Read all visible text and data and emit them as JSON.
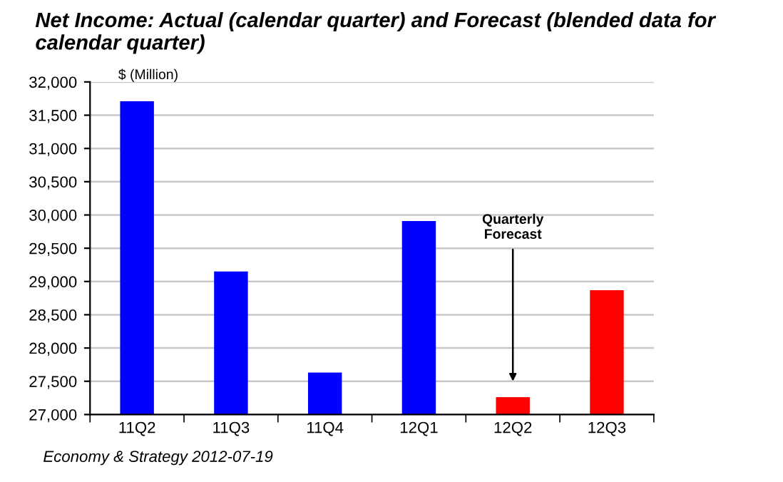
{
  "chart_data": {
    "type": "bar",
    "title": "Net Income: Actual (calendar quarter) and Forecast (blended data for calendar quarter)",
    "ylabel": "$ (Million)",
    "categories": [
      "11Q2",
      "11Q3",
      "11Q4",
      "12Q1",
      "12Q2",
      "12Q3"
    ],
    "values": [
      31710,
      29150,
      27630,
      29910,
      27260,
      28870
    ],
    "colors": [
      "#0000ff",
      "#0000ff",
      "#0000ff",
      "#0000ff",
      "#ff0000",
      "#ff0000"
    ],
    "ylim": [
      27000,
      32000
    ],
    "yticks": [
      {
        "value": 27000,
        "label": "27,000"
      },
      {
        "value": 27500,
        "label": "27,500"
      },
      {
        "value": 28000,
        "label": "28,000"
      },
      {
        "value": 28500,
        "label": "28,500"
      },
      {
        "value": 29000,
        "label": "29,000"
      },
      {
        "value": 29500,
        "label": "29,500"
      },
      {
        "value": 30000,
        "label": "30,000"
      },
      {
        "value": 30500,
        "label": "30,500"
      },
      {
        "value": 31000,
        "label": "31,000"
      },
      {
        "value": 31500,
        "label": "31,500"
      },
      {
        "value": 32000,
        "label": "32,000"
      }
    ],
    "grid": "y",
    "annotations": [
      "Quarterly\nForecast",
      "Economy & Strategy 2012-07-19"
    ]
  }
}
